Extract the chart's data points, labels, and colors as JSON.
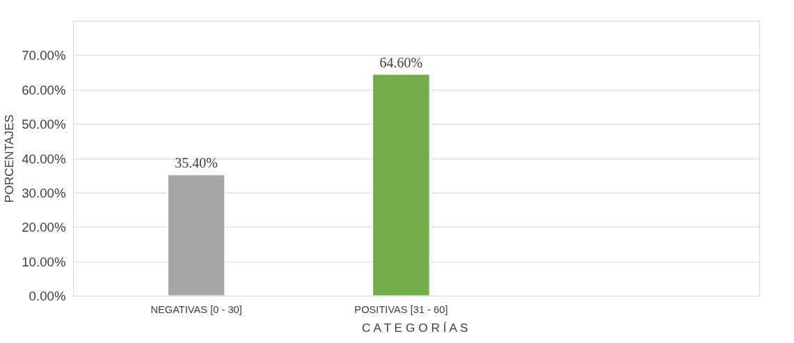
{
  "chart_data": {
    "type": "bar",
    "xlabel": "C A T E G O R Í A S",
    "ylabel": "PORCENTAJES",
    "categories": [
      "NEGATIVAS [0 - 30]",
      "POSITIVAS [31 - 60]"
    ],
    "values": [
      35.4,
      64.6
    ],
    "colors": [
      "#a5a5a5",
      "#70ad47"
    ],
    "value_labels": [
      "35.40%",
      "64.60%"
    ],
    "ylim": [
      0,
      80
    ],
    "yticks": [
      {
        "value": 0,
        "label": "0.00%"
      },
      {
        "value": 10,
        "label": "10.00%"
      },
      {
        "value": 20,
        "label": "20.00%"
      },
      {
        "value": 30,
        "label": "30.00%"
      },
      {
        "value": 40,
        "label": "40.00%"
      },
      {
        "value": 50,
        "label": "50.00%"
      },
      {
        "value": 60,
        "label": "60.00%"
      },
      {
        "value": 70,
        "label": "70.00%"
      },
      {
        "value": 80,
        "label": null
      }
    ],
    "grid": "y"
  }
}
